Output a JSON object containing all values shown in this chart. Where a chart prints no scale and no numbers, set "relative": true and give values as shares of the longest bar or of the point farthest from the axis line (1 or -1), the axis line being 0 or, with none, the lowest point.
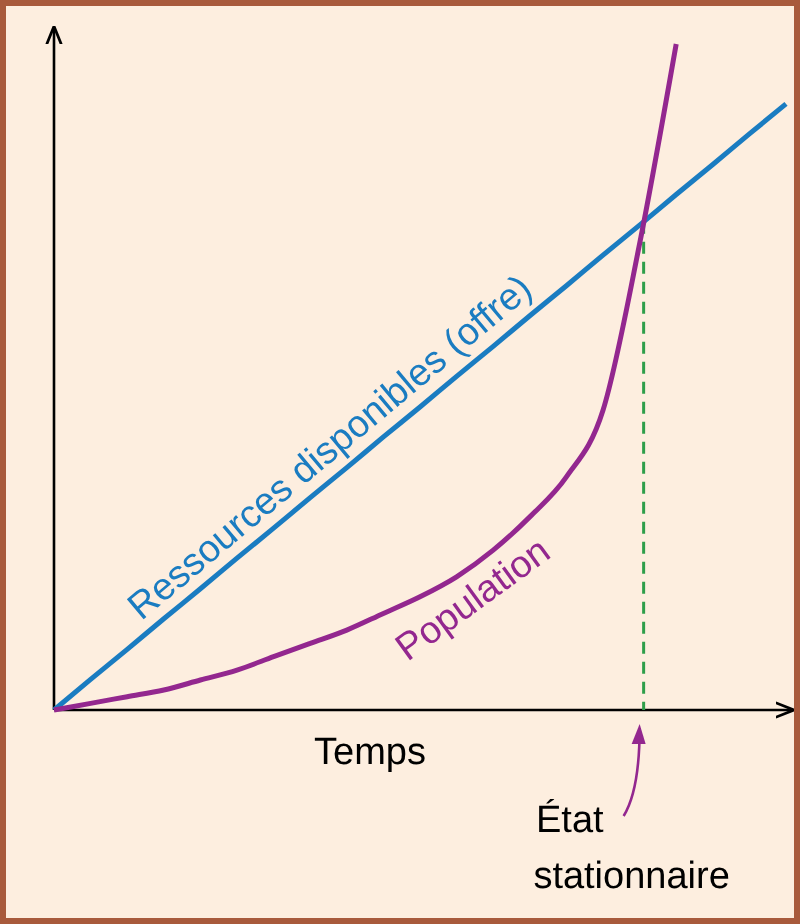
{
  "chart_data": {
    "type": "line",
    "relative": true,
    "xlabel": "Temps",
    "categories": [
      null,
      null,
      null,
      null,
      null,
      null,
      null,
      null,
      null,
      null,
      null,
      null,
      null,
      null,
      null,
      null,
      null,
      null,
      null,
      null,
      null
    ],
    "series": [
      {
        "name": "Ressources disponibles (offre)",
        "color": "#1a7cc1",
        "values": [
          0,
          0.046,
          0.091,
          0.137,
          0.182,
          0.228,
          0.273,
          0.319,
          0.364,
          0.41,
          0.455,
          0.501,
          0.546,
          0.592,
          0.637,
          0.683,
          0.728,
          0.774,
          0.819,
          0.865,
          0.91
        ]
      },
      {
        "name": "Population",
        "color": "#93278f",
        "values": [
          0,
          0.01,
          0.02,
          0.03,
          0.045,
          0.06,
          0.08,
          0.1,
          0.12,
          0.145,
          0.17,
          0.2,
          0.24,
          0.29,
          0.35,
          0.45,
          0.7,
          1,
          null,
          null,
          null
        ]
      }
    ],
    "annotations": [
      "État stationnaire"
    ]
  }
}
